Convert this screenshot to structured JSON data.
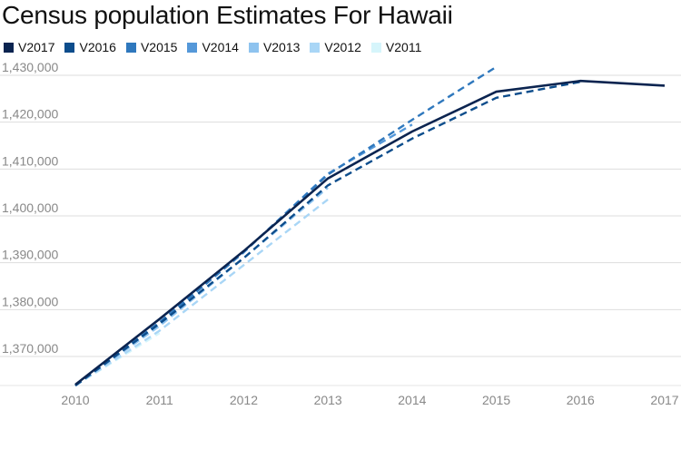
{
  "chart_data": {
    "type": "line",
    "title": "Census population Estimates For Hawaii",
    "xlabel": "",
    "ylabel": "",
    "x": [
      "2010",
      "2011",
      "2012",
      "2013",
      "2014",
      "2015",
      "2016",
      "2017"
    ],
    "ylim": [
      1363000,
      1432000
    ],
    "y_ticks": [
      1370000,
      1380000,
      1390000,
      1400000,
      1410000,
      1420000,
      1430000
    ],
    "y_tick_labels": [
      "1,370,000",
      "1,380,000",
      "1,390,000",
      "1,400,000",
      "1,410,000",
      "1,420,000",
      "1,430,000"
    ],
    "grid": true,
    "legend_position": "top-left",
    "series": [
      {
        "name": "V2017",
        "color": "#0b2450",
        "dashed": false,
        "values": [
          1364000,
          1378000,
          1392500,
          1408000,
          1418000,
          1426500,
          1428800,
          1427800
        ]
      },
      {
        "name": "V2016",
        "color": "#0d4d8c",
        "dashed": true,
        "values": [
          1363800,
          1377000,
          1391000,
          1406500,
          1416500,
          1425200,
          1428600,
          null
        ]
      },
      {
        "name": "V2015",
        "color": "#2f78bd",
        "dashed": true,
        "values": [
          1363800,
          1377300,
          1392300,
          1408800,
          1420500,
          1431800,
          null,
          null
        ]
      },
      {
        "name": "V2014",
        "color": "#5598d9",
        "dashed": true,
        "values": [
          1363800,
          1377200,
          1392200,
          1409000,
          1419500,
          null,
          null,
          null
        ]
      },
      {
        "name": "V2013",
        "color": "#8ec3ef",
        "dashed": true,
        "values": [
          1363800,
          1376500,
          1391000,
          1406000,
          null,
          null,
          null,
          null
        ]
      },
      {
        "name": "V2012",
        "color": "#a9d6f6",
        "dashed": true,
        "values": [
          1363800,
          1375500,
          1389500,
          1403500,
          null,
          null,
          null,
          null
        ]
      },
      {
        "name": "V2011",
        "color": "#d6f5fb",
        "dashed": true,
        "values": [
          1363800,
          1375000,
          null,
          null,
          null,
          null,
          null,
          null
        ]
      }
    ]
  }
}
